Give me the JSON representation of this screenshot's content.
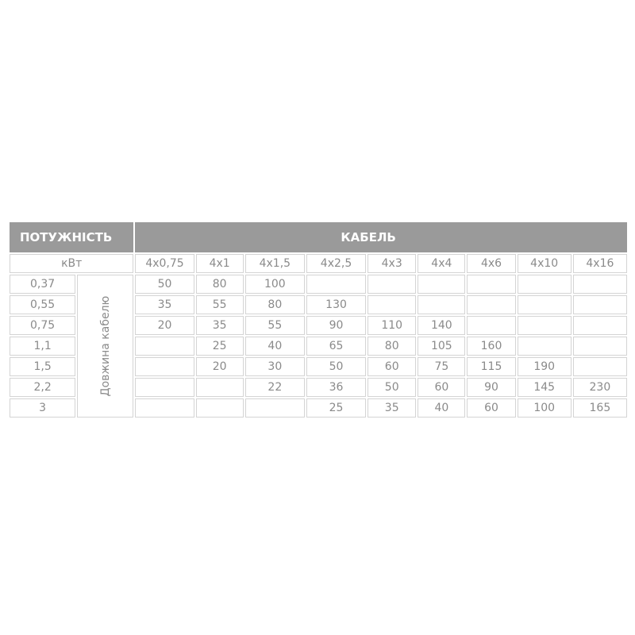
{
  "header": {
    "power_label": "ПОТУЖНІСТЬ",
    "cable_label": "КАБЕЛЬ"
  },
  "unit_label": "кВт",
  "row_group_label": "Довжина кабелю",
  "cable_sections": [
    "4x0,75",
    "4x1",
    "4x1,5",
    "4x2,5",
    "4x3",
    "4x4",
    "4x6",
    "4x10",
    "4x16"
  ],
  "rows": [
    {
      "power": "0,37",
      "lengths": [
        "50",
        "80",
        "100",
        "",
        "",
        "",
        "",
        "",
        ""
      ]
    },
    {
      "power": "0,55",
      "lengths": [
        "35",
        "55",
        "80",
        "130",
        "",
        "",
        "",
        "",
        ""
      ]
    },
    {
      "power": "0,75",
      "lengths": [
        "20",
        "35",
        "55",
        "90",
        "110",
        "140",
        "",
        "",
        ""
      ]
    },
    {
      "power": "1,1",
      "lengths": [
        "",
        "25",
        "40",
        "65",
        "80",
        "105",
        "160",
        "",
        ""
      ]
    },
    {
      "power": "1,5",
      "lengths": [
        "",
        "20",
        "30",
        "50",
        "60",
        "75",
        "115",
        "190",
        ""
      ]
    },
    {
      "power": "2,2",
      "lengths": [
        "",
        "",
        "22",
        "36",
        "50",
        "60",
        "90",
        "145",
        "230"
      ]
    },
    {
      "power": "3",
      "lengths": [
        "",
        "",
        "",
        "25",
        "35",
        "40",
        "60",
        "100",
        "165"
      ]
    }
  ],
  "colors": {
    "header_bg": "#9a9a9a",
    "text": "#8a8a8a",
    "border": "#d4d4d4"
  }
}
